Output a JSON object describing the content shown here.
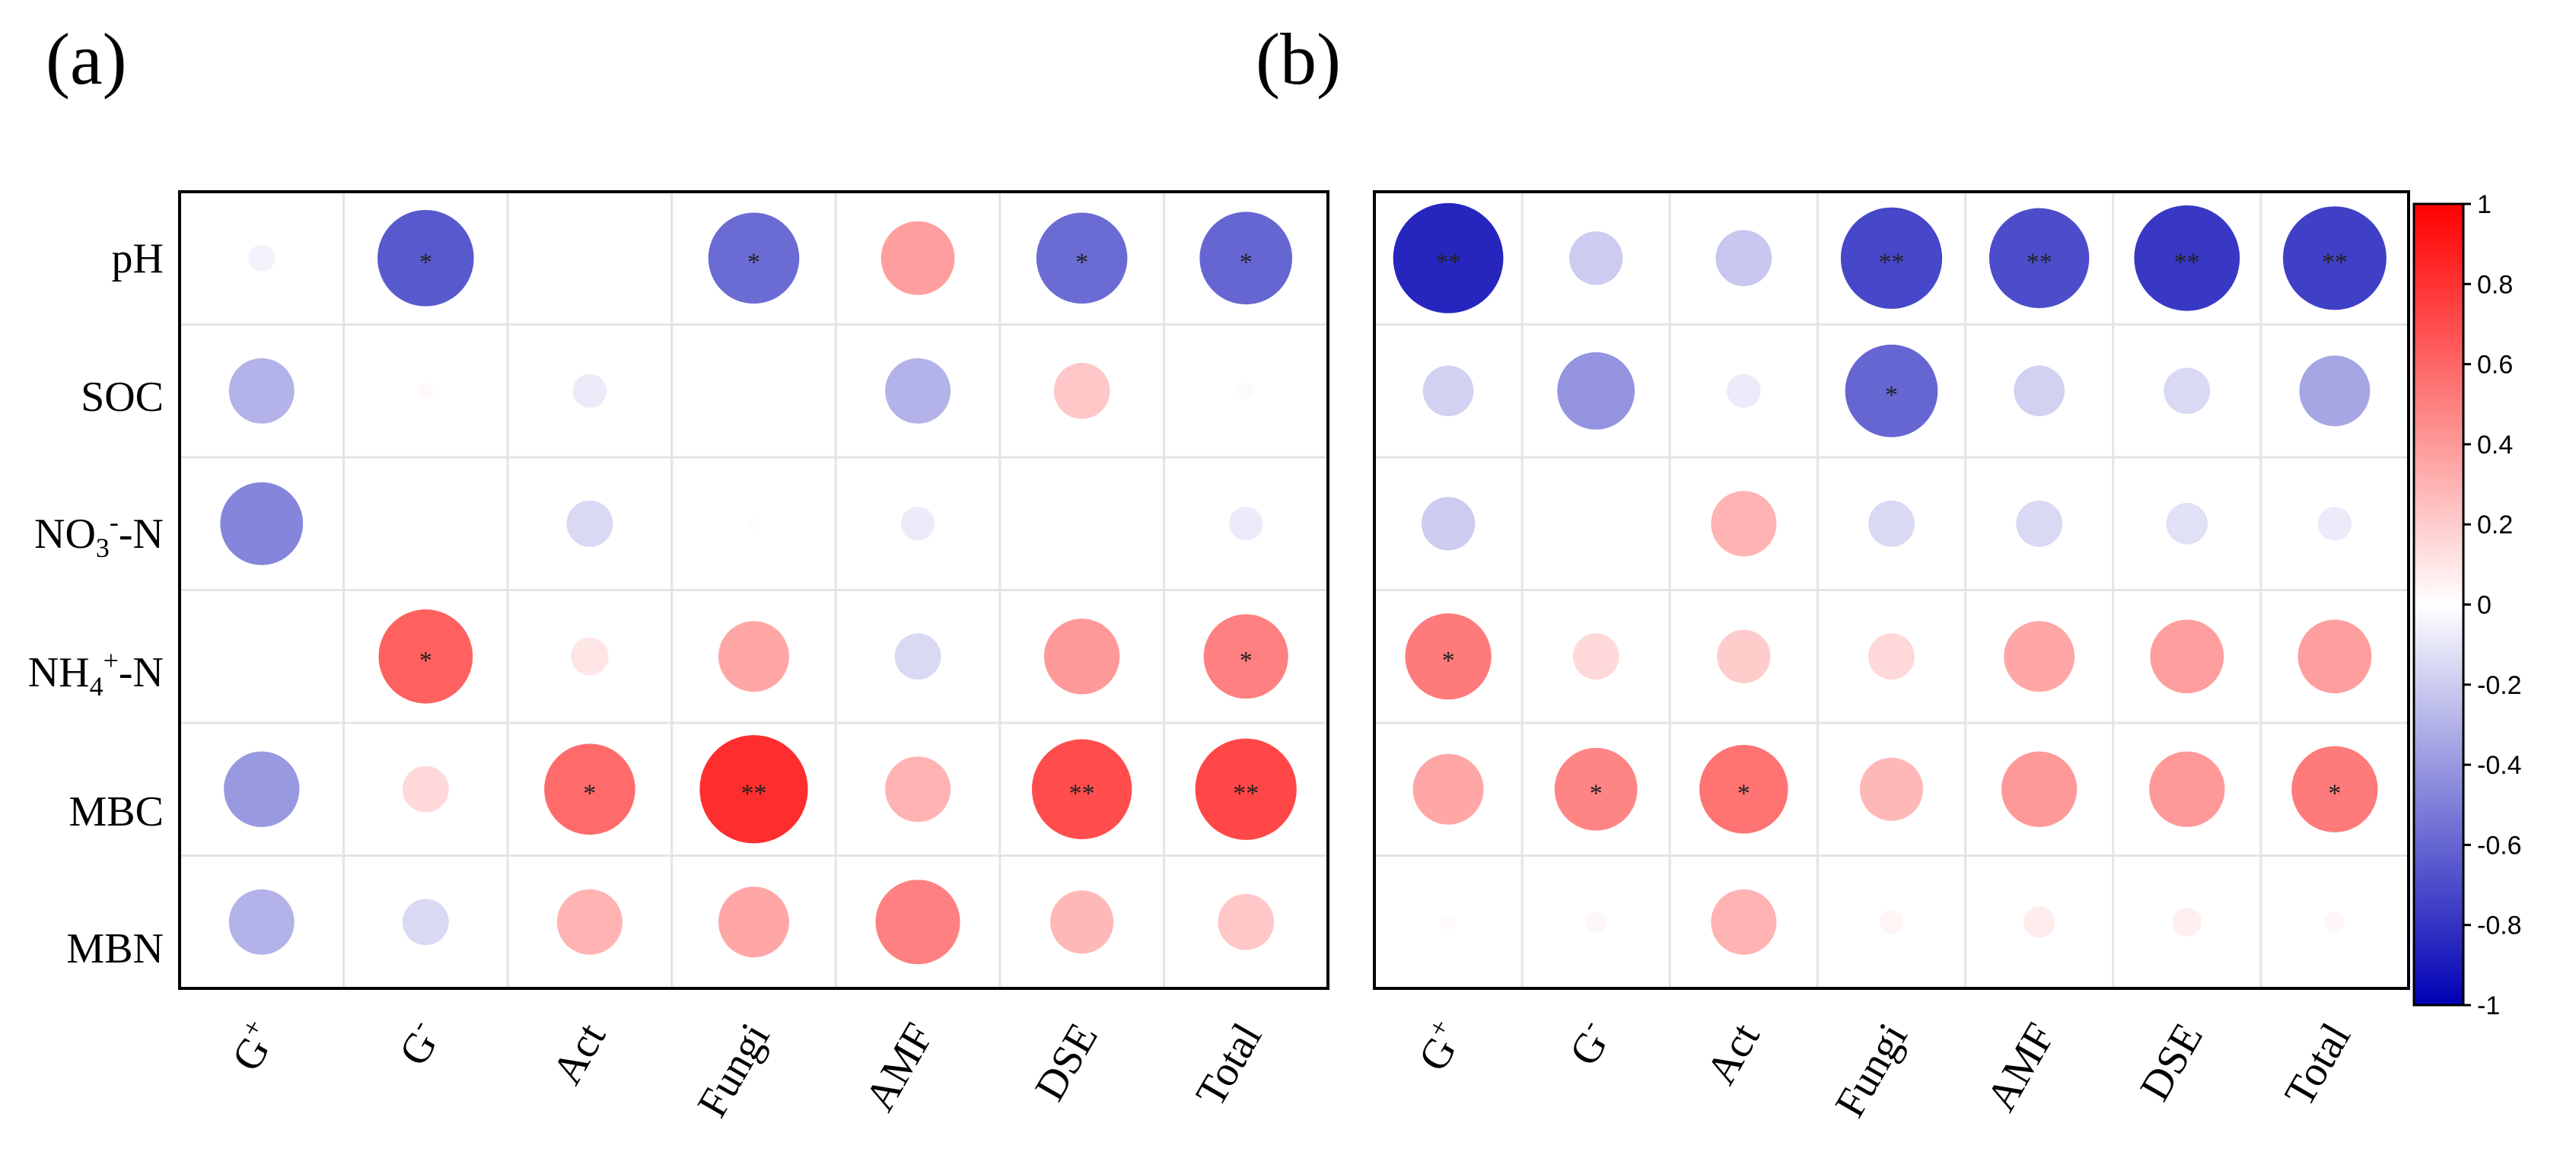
{
  "chart_data": [
    {
      "type": "heatmap",
      "panel_label": "(a)",
      "rows": [
        "pH",
        "SOC",
        "NO3--N",
        "NH4+-N",
        "MBC",
        "MBN"
      ],
      "row_labels": [
        {
          "base": "pH",
          "sub": "",
          "sup": "",
          "tail": ""
        },
        {
          "base": "SOC",
          "sub": "",
          "sup": "",
          "tail": ""
        },
        {
          "base": "NO",
          "sub": "3",
          "sup": "-",
          "tail": "-N"
        },
        {
          "base": "NH",
          "sub": "4",
          "sup": "+",
          "tail": "-N"
        },
        {
          "base": "MBC",
          "sub": "",
          "sup": "",
          "tail": ""
        },
        {
          "base": "MBN",
          "sub": "",
          "sup": "",
          "tail": ""
        }
      ],
      "columns": [
        "G+",
        "G-",
        "Act",
        "Fungi",
        "AMF",
        "DSE",
        "Total"
      ],
      "col_labels": [
        {
          "base": "G",
          "sup": "+"
        },
        {
          "base": "G",
          "sup": "-"
        },
        {
          "base": "Act",
          "sup": ""
        },
        {
          "base": "Fungi",
          "sup": ""
        },
        {
          "base": "AMF",
          "sup": ""
        },
        {
          "base": "DSE",
          "sup": ""
        },
        {
          "base": "Total",
          "sup": ""
        }
      ],
      "values": [
        [
          -0.05,
          -0.65,
          0.0,
          -0.58,
          0.38,
          -0.58,
          -0.6
        ],
        [
          -0.3,
          0.02,
          -0.08,
          0.0,
          -0.3,
          0.22,
          0.02
        ],
        [
          -0.48,
          0.0,
          -0.15,
          0.01,
          -0.08,
          0.0,
          -0.08
        ],
        [
          0.0,
          0.62,
          0.1,
          0.35,
          -0.15,
          0.4,
          0.5
        ],
        [
          -0.4,
          0.15,
          0.58,
          0.82,
          0.3,
          0.7,
          0.72
        ],
        [
          -0.3,
          -0.15,
          0.3,
          0.35,
          0.5,
          0.28,
          0.22
        ]
      ],
      "significance": [
        [
          "",
          "*",
          "",
          "*",
          "",
          "*",
          "*"
        ],
        [
          "",
          "",
          "",
          "",
          "",
          "",
          ""
        ],
        [
          "",
          "",
          "",
          "",
          "",
          "",
          ""
        ],
        [
          "",
          "*",
          "",
          "",
          "",
          "",
          "*"
        ],
        [
          "",
          "",
          "*",
          "**",
          "",
          "**",
          "**"
        ],
        [
          "",
          "",
          "",
          "",
          "",
          "",
          ""
        ]
      ]
    },
    {
      "type": "heatmap",
      "panel_label": "(b)",
      "rows": [
        "pH",
        "SOC",
        "NO3--N",
        "NH4+-N",
        "MBC",
        "MBN"
      ],
      "columns": [
        "G+",
        "G-",
        "Act",
        "Fungi",
        "AMF",
        "DSE",
        "Total"
      ],
      "col_labels": [
        {
          "base": "G",
          "sup": "+"
        },
        {
          "base": "G",
          "sup": "-"
        },
        {
          "base": "Act",
          "sup": ""
        },
        {
          "base": "Fungi",
          "sup": ""
        },
        {
          "base": "AMF",
          "sup": ""
        },
        {
          "base": "DSE",
          "sup": ""
        },
        {
          "base": "Total",
          "sup": ""
        }
      ],
      "values": [
        [
          -0.85,
          -0.2,
          -0.22,
          -0.72,
          -0.7,
          -0.78,
          -0.75
        ],
        [
          -0.18,
          -0.42,
          -0.08,
          -0.6,
          -0.18,
          -0.15,
          -0.35
        ],
        [
          -0.2,
          0.0,
          0.3,
          -0.15,
          -0.15,
          -0.12,
          -0.08
        ],
        [
          0.52,
          0.15,
          0.2,
          0.15,
          0.35,
          0.38,
          0.38
        ],
        [
          0.35,
          0.48,
          0.55,
          0.28,
          0.4,
          0.4,
          0.52
        ],
        [
          0.02,
          0.03,
          0.3,
          0.04,
          0.07,
          0.06,
          0.03
        ]
      ],
      "significance": [
        [
          "**",
          "",
          "",
          "**",
          "**",
          "**",
          "**"
        ],
        [
          "",
          "",
          "",
          "*",
          "",
          "",
          ""
        ],
        [
          "",
          "",
          "",
          "",
          "",
          "",
          ""
        ],
        [
          "*",
          "",
          "",
          "",
          "",
          "",
          ""
        ],
        [
          "",
          "*",
          "*",
          "",
          "",
          "",
          "*"
        ],
        [
          "",
          "",
          "",
          "",
          "",
          "",
          ""
        ]
      ]
    }
  ],
  "colorbar": {
    "range": [
      -1,
      1
    ],
    "ticks": [
      "1",
      "0.8",
      "0.6",
      "0.4",
      "0.2",
      "0",
      "-0.2",
      "-0.4",
      "-0.6",
      "-0.8",
      "-1"
    ],
    "tick_values": [
      1,
      0.8,
      0.6,
      0.4,
      0.2,
      0,
      -0.2,
      -0.4,
      -0.6,
      -0.8,
      -1
    ],
    "colors": {
      "negative": "#0000b4",
      "zero": "#ffffff",
      "positive": "#ff0000"
    }
  }
}
